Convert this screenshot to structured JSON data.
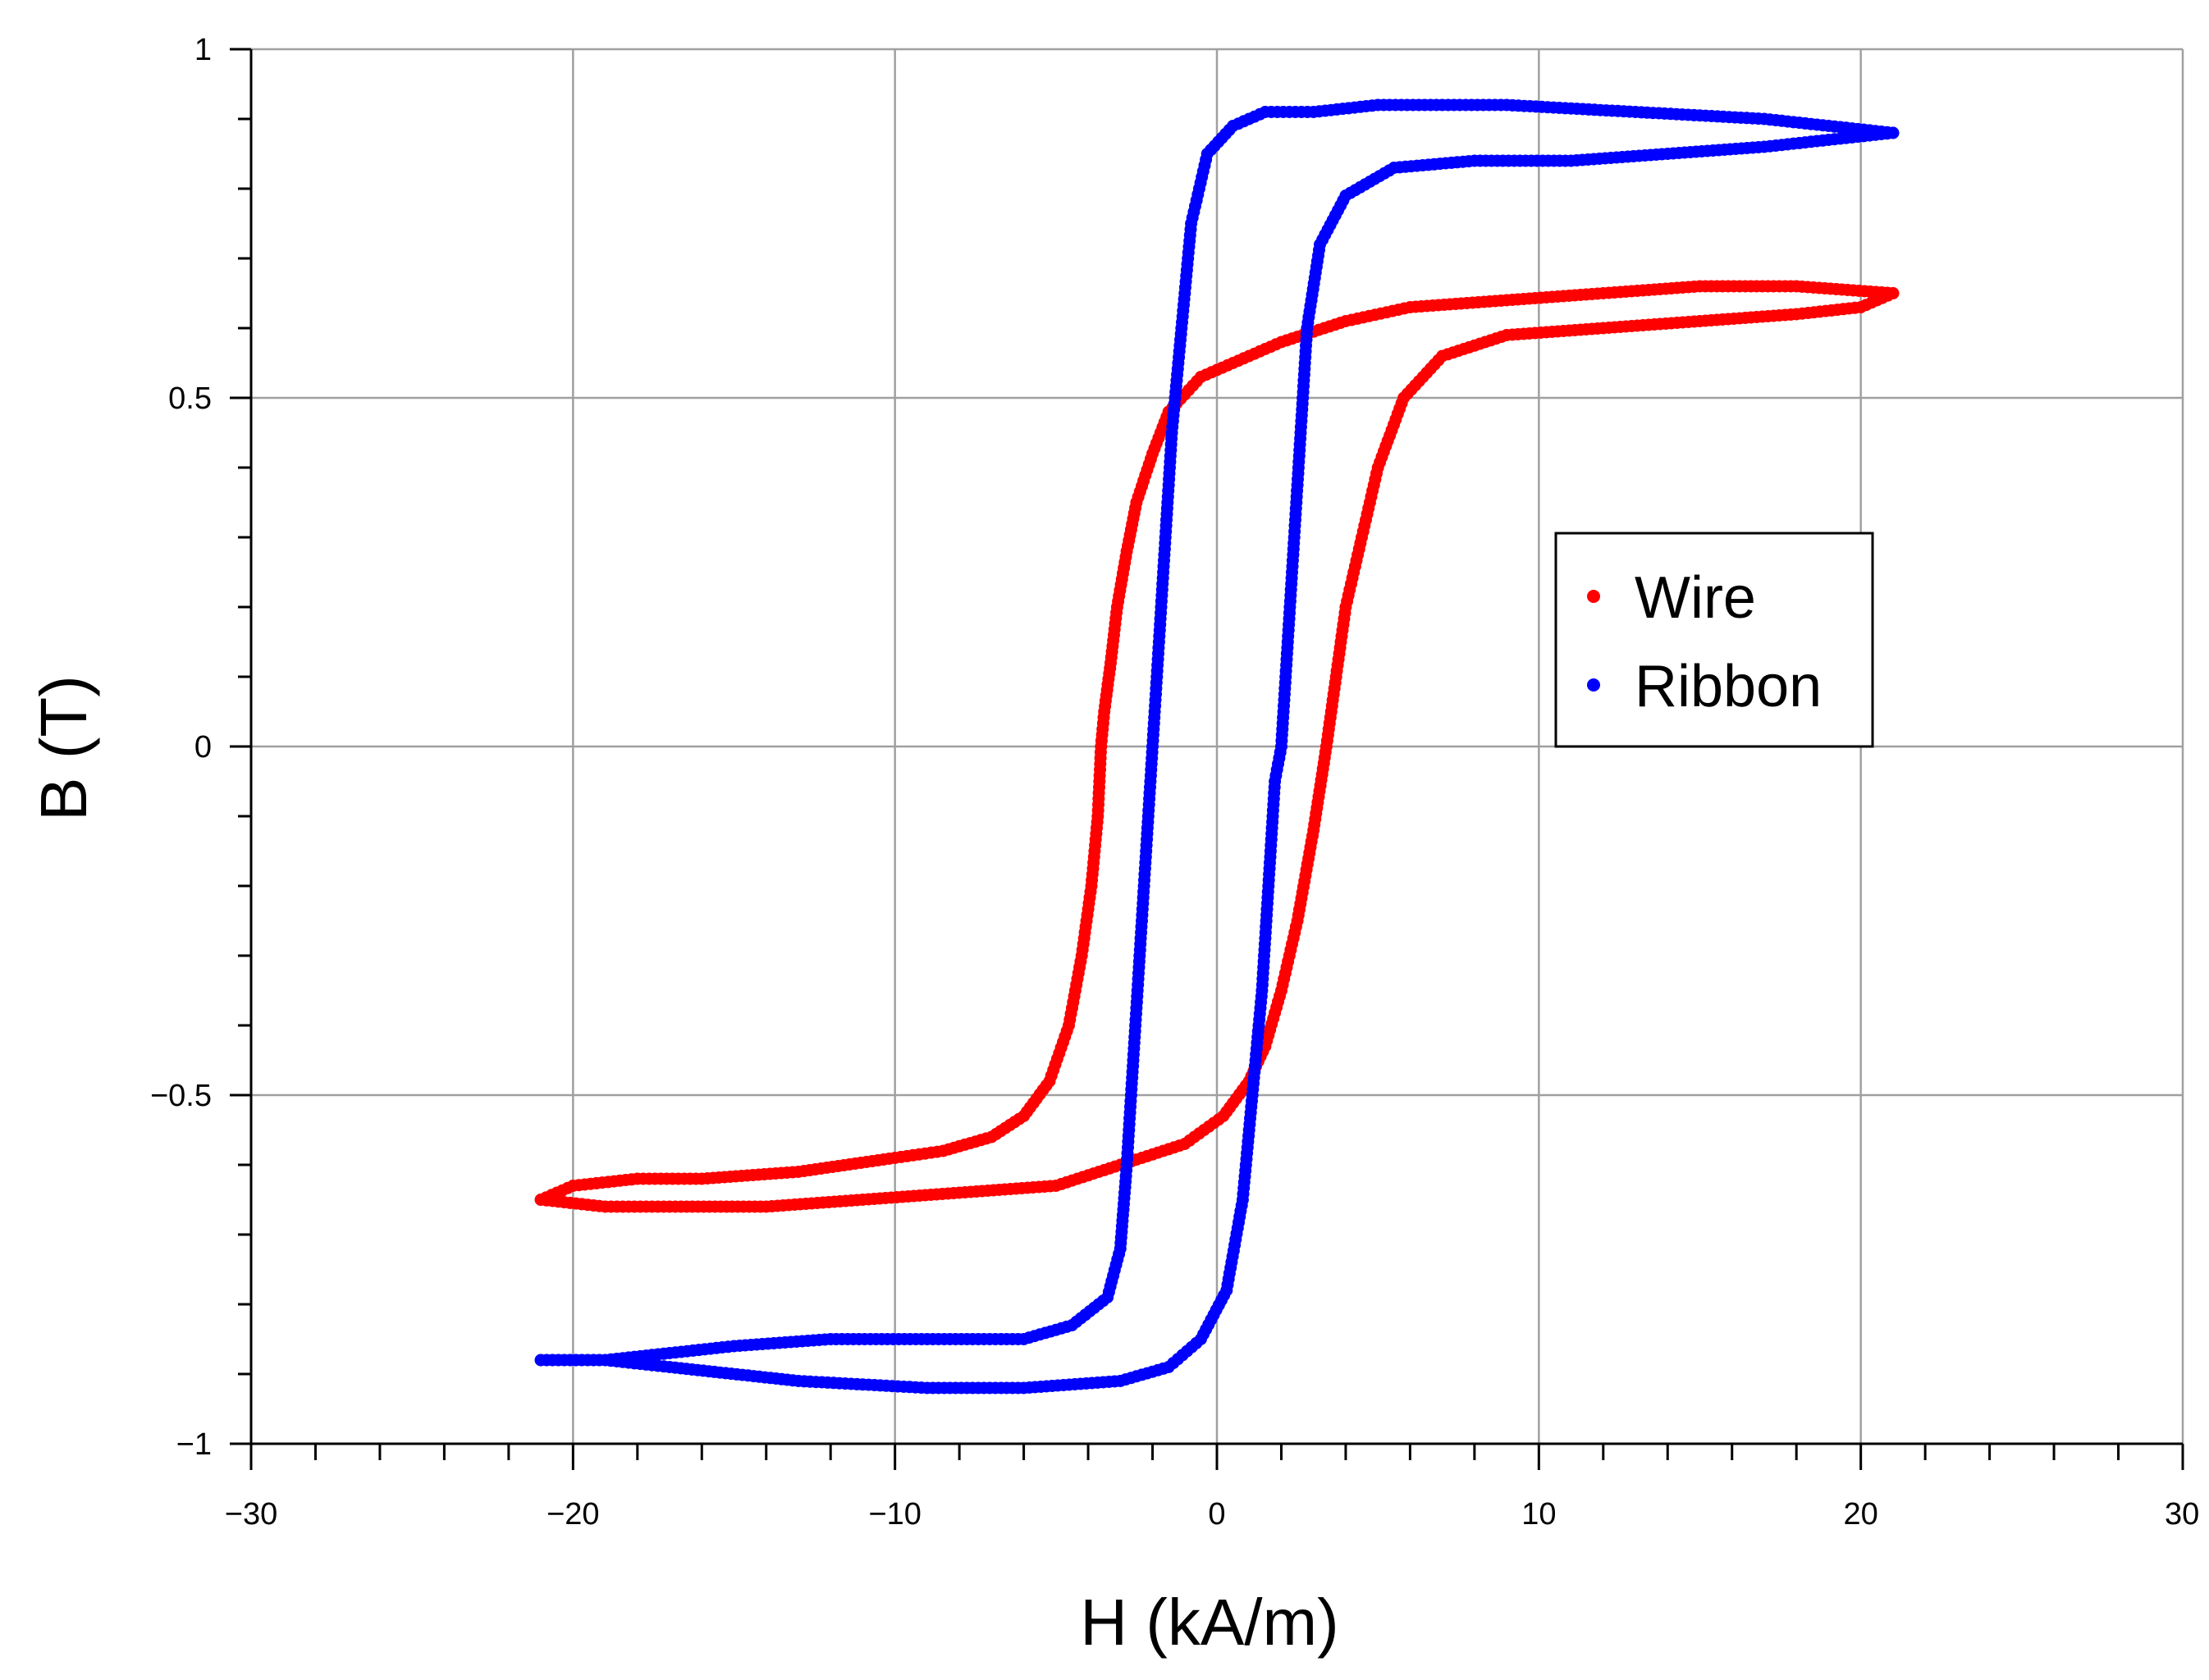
{
  "chart_data": {
    "type": "scatter",
    "title": "",
    "xlabel": "H (kA/m)",
    "ylabel": "B (T)",
    "xlim": [
      -30,
      30
    ],
    "ylim": [
      -1,
      1
    ],
    "grid": true,
    "legend_position": "right-center",
    "xticks": [
      -30,
      -20,
      -10,
      0,
      10,
      20,
      30
    ],
    "xtick_labels": [
      "−30",
      "−20",
      "−10",
      "0",
      "10",
      "20",
      "30"
    ],
    "yticks": [
      -1,
      -0.5,
      0,
      0.5,
      1
    ],
    "ytick_labels": [
      "−1",
      "−0.5",
      "0",
      "0.5",
      "1"
    ],
    "series": [
      {
        "name": "Wire",
        "color": "#ff0000",
        "descending_branch": [
          [
            21,
            0.65
          ],
          [
            18,
            0.66
          ],
          [
            15,
            0.66
          ],
          [
            12,
            0.65
          ],
          [
            9,
            0.64
          ],
          [
            6,
            0.63
          ],
          [
            4,
            0.61
          ],
          [
            2,
            0.58
          ],
          [
            0.5,
            0.55
          ],
          [
            -0.5,
            0.53
          ],
          [
            -1.5,
            0.48
          ],
          [
            -2,
            0.42
          ],
          [
            -2.5,
            0.35
          ],
          [
            -2.8,
            0.28
          ],
          [
            -3.1,
            0.2
          ],
          [
            -3.3,
            0.12
          ],
          [
            -3.5,
            0.05
          ],
          [
            -3.6,
            0
          ],
          [
            -3.7,
            -0.1
          ],
          [
            -3.9,
            -0.2
          ],
          [
            -4.2,
            -0.3
          ],
          [
            -4.6,
            -0.4
          ],
          [
            -5.2,
            -0.48
          ],
          [
            -6,
            -0.53
          ],
          [
            -7,
            -0.56
          ],
          [
            -8.5,
            -0.58
          ],
          [
            -10,
            -0.59
          ],
          [
            -13,
            -0.61
          ],
          [
            -16,
            -0.62
          ],
          [
            -18,
            -0.62
          ],
          [
            -20,
            -0.63
          ],
          [
            -21,
            -0.65
          ]
        ],
        "ascending_branch": [
          [
            -21,
            -0.65
          ],
          [
            -19,
            -0.66
          ],
          [
            -17,
            -0.66
          ],
          [
            -14,
            -0.66
          ],
          [
            -11,
            -0.65
          ],
          [
            -8,
            -0.64
          ],
          [
            -5,
            -0.63
          ],
          [
            -3,
            -0.6
          ],
          [
            -1,
            -0.57
          ],
          [
            0.2,
            -0.53
          ],
          [
            1,
            -0.48
          ],
          [
            1.5,
            -0.43
          ],
          [
            2,
            -0.35
          ],
          [
            2.5,
            -0.25
          ],
          [
            3,
            -0.12
          ],
          [
            3.4,
            0
          ],
          [
            3.7,
            0.1
          ],
          [
            4,
            0.2
          ],
          [
            4.5,
            0.3
          ],
          [
            5,
            0.4
          ],
          [
            5.8,
            0.5
          ],
          [
            7,
            0.56
          ],
          [
            9,
            0.59
          ],
          [
            12,
            0.6
          ],
          [
            15,
            0.61
          ],
          [
            18,
            0.62
          ],
          [
            20,
            0.63
          ],
          [
            21,
            0.65
          ]
        ]
      },
      {
        "name": "Ribbon",
        "color": "#0000ff",
        "descending_branch": [
          [
            21,
            0.88
          ],
          [
            19,
            0.89
          ],
          [
            17,
            0.9
          ],
          [
            13,
            0.91
          ],
          [
            9,
            0.92
          ],
          [
            5,
            0.92
          ],
          [
            3,
            0.91
          ],
          [
            1.5,
            0.91
          ],
          [
            0.5,
            0.89
          ],
          [
            -0.3,
            0.85
          ],
          [
            -0.8,
            0.75
          ],
          [
            -1.1,
            0.6
          ],
          [
            -1.4,
            0.45
          ],
          [
            -1.6,
            0.3
          ],
          [
            -1.8,
            0.15
          ],
          [
            -2,
            0
          ],
          [
            -2.2,
            -0.15
          ],
          [
            -2.4,
            -0.3
          ],
          [
            -2.6,
            -0.45
          ],
          [
            -2.8,
            -0.6
          ],
          [
            -3,
            -0.72
          ],
          [
            -3.4,
            -0.79
          ],
          [
            -4.5,
            -0.83
          ],
          [
            -6,
            -0.85
          ],
          [
            -9,
            -0.85
          ],
          [
            -12,
            -0.85
          ],
          [
            -15,
            -0.86
          ],
          [
            -17,
            -0.87
          ],
          [
            -19,
            -0.88
          ],
          [
            -21,
            -0.88
          ]
        ],
        "ascending_branch": [
          [
            -21,
            -0.88
          ],
          [
            -19,
            -0.88
          ],
          [
            -17,
            -0.89
          ],
          [
            -13,
            -0.91
          ],
          [
            -9,
            -0.92
          ],
          [
            -6,
            -0.92
          ],
          [
            -3,
            -0.91
          ],
          [
            -1.5,
            -0.89
          ],
          [
            -0.5,
            -0.85
          ],
          [
            0.3,
            -0.78
          ],
          [
            0.8,
            -0.65
          ],
          [
            1.1,
            -0.5
          ],
          [
            1.4,
            -0.35
          ],
          [
            1.6,
            -0.2
          ],
          [
            1.8,
            -0.05
          ],
          [
            2,
            0
          ],
          [
            2.2,
            0.15
          ],
          [
            2.4,
            0.3
          ],
          [
            2.6,
            0.45
          ],
          [
            2.8,
            0.6
          ],
          [
            3.2,
            0.72
          ],
          [
            4,
            0.79
          ],
          [
            5.5,
            0.83
          ],
          [
            8,
            0.84
          ],
          [
            11,
            0.84
          ],
          [
            14,
            0.85
          ],
          [
            17,
            0.86
          ],
          [
            19,
            0.87
          ],
          [
            21,
            0.88
          ]
        ]
      }
    ]
  }
}
